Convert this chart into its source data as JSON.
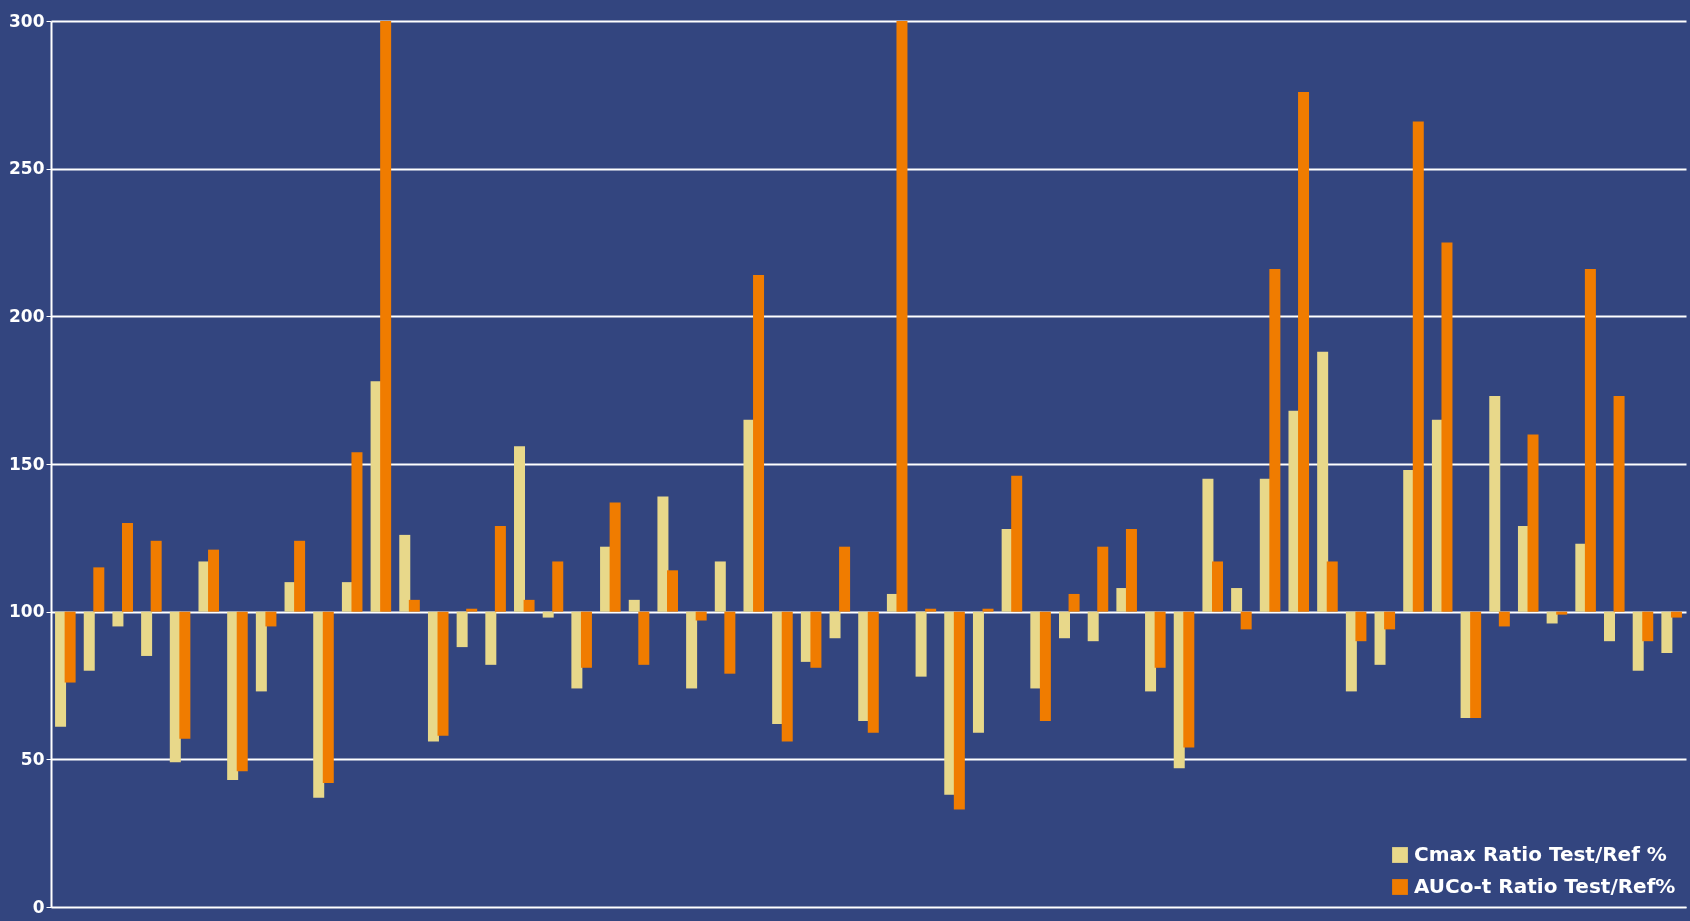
{
  "chart_data": {
    "type": "bar",
    "categories": [
      null,
      null,
      null,
      null,
      null,
      null,
      null,
      null,
      null,
      null,
      null,
      null,
      null,
      null,
      null,
      null,
      null,
      null,
      null,
      null,
      null,
      null,
      null,
      null,
      null,
      null,
      null,
      null,
      null,
      null,
      null,
      null,
      null,
      null,
      null,
      null,
      null,
      null,
      null,
      null,
      null,
      null,
      null,
      null,
      null,
      null,
      null,
      null,
      null,
      null,
      null,
      null,
      null,
      null,
      null,
      null,
      null
    ],
    "series": [
      {
        "name": "Cmax Ratio Test/Ref %",
        "color": "#e8d88a",
        "base": [
          100,
          100,
          100,
          100,
          100,
          100,
          100,
          100,
          100,
          100,
          100,
          100,
          100,
          100,
          100,
          100,
          100,
          100,
          100,
          100,
          100,
          100,
          100,
          100,
          100,
          100,
          100,
          100,
          100,
          100,
          100,
          100,
          100,
          100,
          100,
          100,
          100,
          100,
          100,
          100,
          100,
          100,
          100,
          100,
          100,
          100,
          100,
          100,
          100,
          100,
          100,
          100,
          100,
          100,
          100,
          100,
          100
        ],
        "values": [
          -39,
          -20,
          -5,
          -15,
          -51,
          17,
          -57,
          -27,
          10,
          -63,
          10,
          78,
          26,
          -44,
          -12,
          -18,
          56,
          -2,
          -26,
          22,
          4,
          39,
          -26,
          17,
          65,
          -38,
          -17,
          -9,
          -37,
          6,
          -22,
          -62,
          -41,
          28,
          -26,
          -9,
          -10,
          8,
          -27,
          -53,
          45,
          8,
          45,
          68,
          88,
          -27,
          -18,
          48,
          65,
          -36,
          73,
          29,
          -4,
          23,
          -10,
          -20,
          -14
        ]
      },
      {
        "name": "AUCo-t Ratio Test/Ref%",
        "color": "#f07c00",
        "base": [
          100,
          100,
          100,
          100,
          100,
          100,
          100,
          100,
          100,
          100,
          100,
          100,
          100,
          100,
          100,
          100,
          100,
          100,
          100,
          100,
          100,
          100,
          100,
          100,
          100,
          100,
          100,
          100,
          100,
          100,
          100,
          100,
          100,
          100,
          100,
          100,
          100,
          100,
          100,
          100,
          100,
          100,
          100,
          100,
          100,
          100,
          100,
          100,
          100,
          100,
          100,
          100,
          100,
          100,
          100,
          100,
          100
        ],
        "values": [
          -24,
          15,
          30,
          24,
          -43,
          21,
          -54,
          -5,
          24,
          -58,
          54,
          200,
          4,
          -42,
          1,
          29,
          4,
          17,
          -19,
          37,
          -18,
          14,
          -3,
          -21,
          114,
          -44,
          -19,
          22,
          -41,
          200,
          1,
          -67,
          1,
          46,
          -37,
          6,
          22,
          28,
          -19,
          -46,
          17,
          -6,
          116,
          176,
          17,
          -10,
          -6,
          166,
          125,
          -36,
          -5,
          60,
          -1,
          116,
          73,
          -10,
          -2
        ]
      }
    ],
    "ylim": [
      0,
      300
    ],
    "yticks": [
      0,
      50,
      100,
      150,
      200,
      250,
      300
    ],
    "grid": "y",
    "legend": "bottom right",
    "tick_labels": "y"
  }
}
